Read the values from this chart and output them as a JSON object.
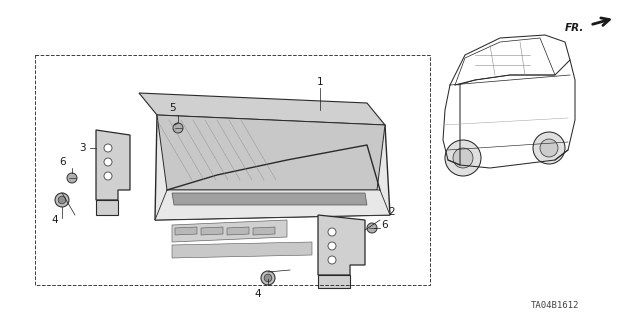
{
  "background_color": "#ffffff",
  "diagram_code": "TA04B1612",
  "fig_width": 6.4,
  "fig_height": 3.19,
  "dpi": 100,
  "text_color": "#1a1a1a",
  "line_color": "#1a1a1a",
  "part_line_color": "#2a2a2a",
  "fr_label": "FR.",
  "labels": [
    "1",
    "2",
    "3",
    "4",
    "4",
    "5",
    "6",
    "6"
  ]
}
